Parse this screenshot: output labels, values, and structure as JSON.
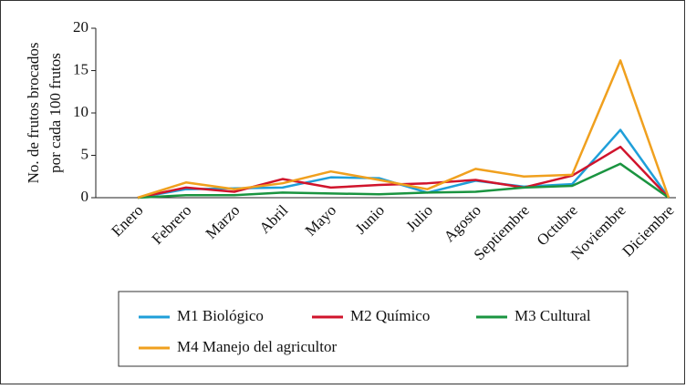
{
  "chart_data": {
    "type": "line",
    "ylabel": [
      "No. de frutos brocados",
      "por cada 100 frutos"
    ],
    "categories": [
      "Enero",
      "Febrero",
      "Marzo",
      "Abril",
      "Mayo",
      "Junio",
      "Julio",
      "Agosto",
      "Septiembre",
      "Octubre",
      "Noviembre",
      "Diciembre"
    ],
    "series": [
      {
        "name": "M1 Biológico",
        "color": "#1f9fd9",
        "values": [
          0,
          1.0,
          1.1,
          1.2,
          2.4,
          2.3,
          0.6,
          2.0,
          1.3,
          1.6,
          8.0,
          0
        ]
      },
      {
        "name": "M2 Químico",
        "color": "#d0142c",
        "values": [
          0,
          1.2,
          0.7,
          2.2,
          1.2,
          1.5,
          1.7,
          2.1,
          1.2,
          2.6,
          6.0,
          0
        ]
      },
      {
        "name": "M3 Cultural",
        "color": "#1a9440",
        "values": [
          0,
          0.3,
          0.3,
          0.6,
          0.5,
          0.4,
          0.6,
          0.7,
          1.2,
          1.4,
          4.0,
          0
        ]
      },
      {
        "name": "M4 Manejo del agricultor",
        "color": "#f0a01e",
        "values": [
          0,
          1.8,
          1.0,
          1.7,
          3.1,
          2.1,
          1.0,
          3.4,
          2.5,
          2.7,
          16.2,
          0
        ]
      }
    ],
    "ylim": [
      0,
      20
    ],
    "yticks": [
      0,
      5,
      10,
      15,
      20
    ]
  }
}
